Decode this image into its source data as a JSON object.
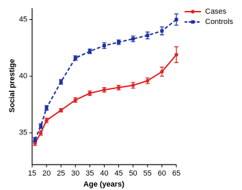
{
  "chart_data": {
    "type": "line",
    "x_label": "Age (years)",
    "y_label": "Social prestige",
    "x": [
      16,
      18,
      20,
      25,
      30,
      35,
      40,
      45,
      50,
      55,
      60,
      65
    ],
    "series": [
      {
        "name": "Cases",
        "color": "#e02424",
        "dash": false,
        "marker": "circle",
        "values": [
          34.1,
          35.0,
          36.1,
          37.0,
          37.9,
          38.5,
          38.8,
          39.0,
          39.2,
          39.6,
          40.4,
          41.9
        ],
        "errors": [
          0.2,
          0.2,
          0.2,
          0.15,
          0.2,
          0.2,
          0.2,
          0.2,
          0.25,
          0.25,
          0.4,
          0.7
        ]
      },
      {
        "name": "Controls",
        "color": "#1c2fa3",
        "dash": true,
        "marker": "square",
        "values": [
          34.4,
          35.6,
          37.2,
          39.5,
          41.6,
          42.2,
          42.7,
          43.0,
          43.3,
          43.6,
          44.0,
          45.0
        ],
        "errors": [
          0.2,
          0.2,
          0.2,
          0.2,
          0.2,
          0.2,
          0.25,
          0.2,
          0.25,
          0.3,
          0.35,
          0.5
        ]
      }
    ],
    "xlim": [
      15,
      65
    ],
    "xticks": [
      15,
      20,
      25,
      30,
      35,
      40,
      45,
      50,
      55,
      60,
      65
    ],
    "ylim": [
      32.2,
      46
    ],
    "yticks": [
      35,
      40,
      45
    ],
    "legend": "top-right"
  }
}
